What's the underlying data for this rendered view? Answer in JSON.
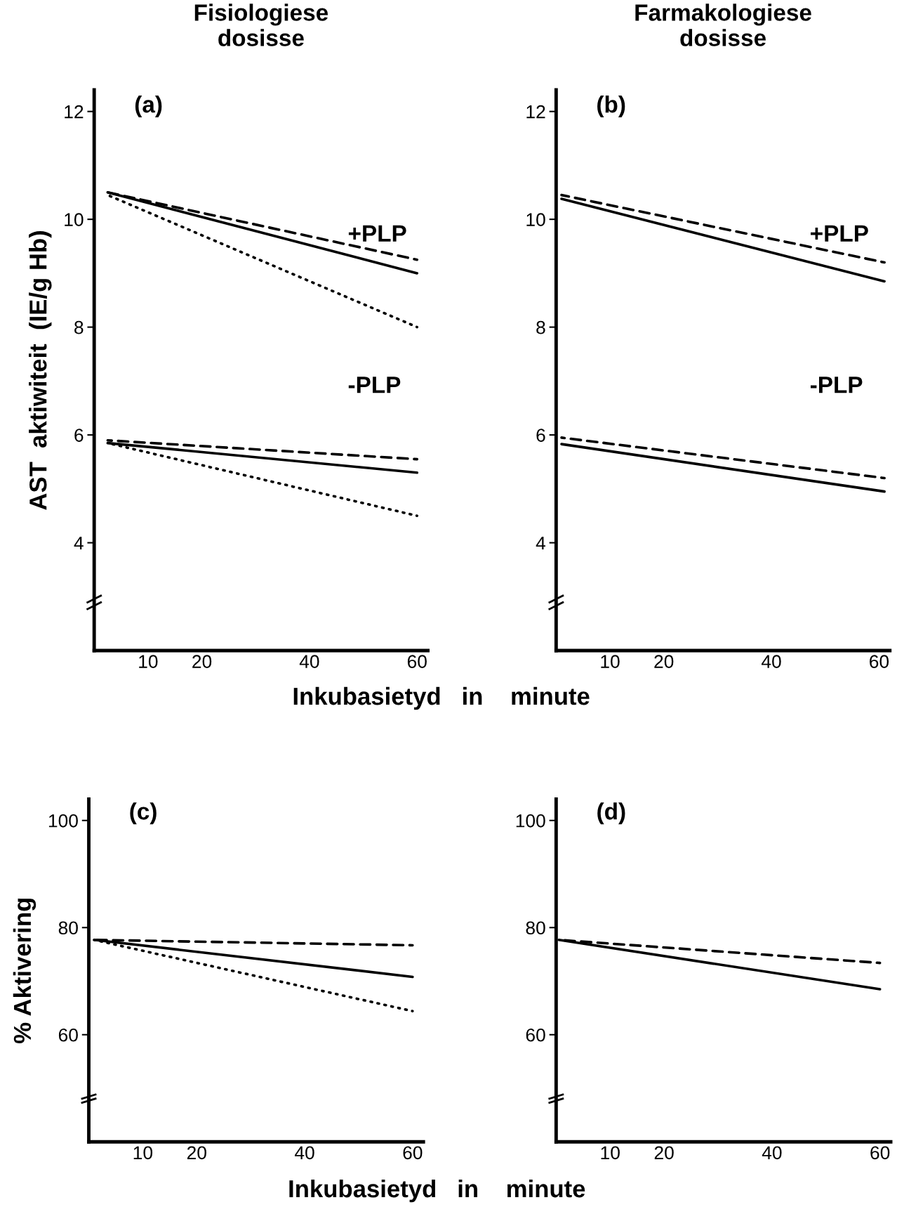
{
  "chart_data": [
    {
      "type": "line",
      "title": "Fisiologiese\ndosisse",
      "ylabel": "AST  aktiwiteit  (IE/g Hb)",
      "xlabel": "Inkubasietyd   in    minute",
      "xlim": [
        0,
        62
      ],
      "ylim": [
        2,
        12.4
      ],
      "xticks": [
        10,
        20,
        40,
        60
      ],
      "yticks": [
        4,
        6,
        8,
        10,
        12
      ],
      "grid": false,
      "legend": false,
      "marker": "none",
      "annotations": [
        "(a)",
        "+PLP",
        "-PLP"
      ],
      "series": [
        {
          "color": "#000000",
          "line_style": "solid",
          "x": [
            2.5,
            60
          ],
          "values": [
            10.5,
            9.0
          ]
        },
        {
          "color": "#000000",
          "line_style": "dashed",
          "x": [
            2.5,
            60
          ],
          "values": [
            10.5,
            9.25
          ]
        },
        {
          "color": "#000000",
          "line_style": "dotted",
          "x": [
            2.5,
            60
          ],
          "values": [
            10.45,
            8.0
          ]
        },
        {
          "color": "#000000",
          "line_style": "solid",
          "x": [
            2.5,
            60
          ],
          "values": [
            5.85,
            5.3
          ]
        },
        {
          "color": "#000000",
          "line_style": "dashed",
          "x": [
            2.5,
            60
          ],
          "values": [
            5.9,
            5.55
          ]
        },
        {
          "color": "#000000",
          "line_style": "dotted",
          "x": [
            2.5,
            60
          ],
          "values": [
            5.85,
            4.5
          ]
        }
      ]
    },
    {
      "type": "line",
      "title": "Farmakologiese\ndosisse",
      "xlim": [
        0,
        62
      ],
      "ylim": [
        2,
        12.4
      ],
      "xticks": [
        10,
        20,
        40,
        60
      ],
      "yticks": [
        4,
        6,
        8,
        10,
        12
      ],
      "grid": false,
      "legend": false,
      "marker": "none",
      "annotations": [
        "(b)",
        "+PLP",
        "-PLP"
      ],
      "series": [
        {
          "color": "#000000",
          "line_style": "solid",
          "x": [
            1,
            61
          ],
          "values": [
            10.38,
            8.85
          ]
        },
        {
          "color": "#000000",
          "line_style": "dashed",
          "x": [
            1,
            61
          ],
          "values": [
            10.45,
            9.2
          ]
        },
        {
          "color": "#000000",
          "line_style": "solid",
          "x": [
            1,
            61
          ],
          "values": [
            5.83,
            4.95
          ]
        },
        {
          "color": "#000000",
          "line_style": "dashed",
          "x": [
            1,
            61
          ],
          "values": [
            5.95,
            5.2
          ]
        }
      ]
    },
    {
      "type": "line",
      "ylabel": "% Aktivering",
      "xlabel": "Inkubasietyd   in    minute",
      "xlim": [
        0,
        62
      ],
      "ylim": [
        40,
        104
      ],
      "xticks": [
        10,
        20,
        40,
        60
      ],
      "yticks": [
        60,
        80,
        100
      ],
      "grid": false,
      "legend": false,
      "marker": "none",
      "annotations": [
        "(c)"
      ],
      "series": [
        {
          "color": "#000000",
          "line_style": "solid",
          "x": [
            1,
            60
          ],
          "values": [
            77.7,
            70.8
          ]
        },
        {
          "color": "#000000",
          "line_style": "dashed",
          "x": [
            1,
            60
          ],
          "values": [
            77.7,
            76.7
          ]
        },
        {
          "color": "#000000",
          "line_style": "dotted",
          "x": [
            1,
            60
          ],
          "values": [
            77.7,
            64.4
          ]
        }
      ]
    },
    {
      "type": "line",
      "xlim": [
        0,
        62
      ],
      "ylim": [
        40,
        104
      ],
      "xticks": [
        10,
        20,
        40,
        60
      ],
      "yticks": [
        60,
        80,
        100
      ],
      "grid": false,
      "legend": false,
      "marker": "none",
      "annotations": [
        "(d)"
      ],
      "series": [
        {
          "color": "#000000",
          "line_style": "solid",
          "x": [
            0.5,
            60
          ],
          "values": [
            77.7,
            68.5
          ]
        },
        {
          "color": "#000000",
          "line_style": "dashed",
          "x": [
            0.5,
            60
          ],
          "values": [
            77.7,
            73.4
          ]
        }
      ]
    }
  ]
}
